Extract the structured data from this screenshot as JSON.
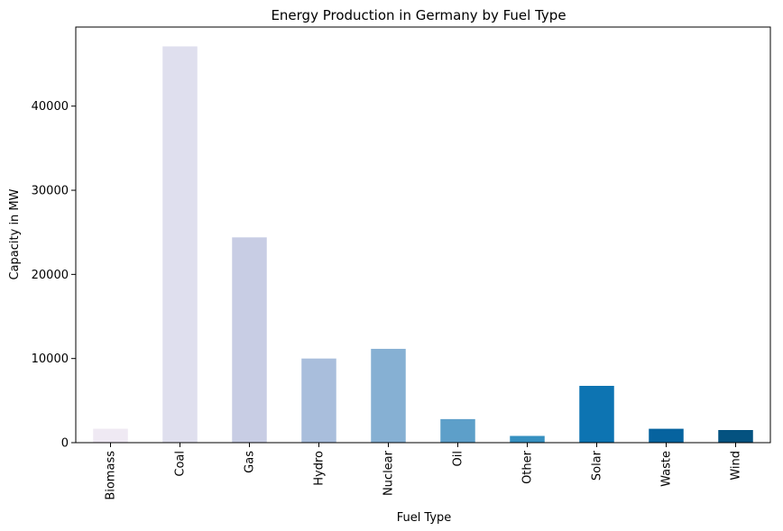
{
  "chart_data": {
    "type": "bar",
    "title": "Energy Production in Germany by Fuel Type",
    "xlabel": "Fuel Type",
    "ylabel": "Capacity in MW",
    "categories": [
      "Biomass",
      "Coal",
      "Gas",
      "Hydro",
      "Nuclear",
      "Oil",
      "Other",
      "Solar",
      "Waste",
      "Wind"
    ],
    "values": [
      1650,
      47100,
      24400,
      10000,
      11150,
      2800,
      800,
      6750,
      1650,
      1500
    ],
    "colors": [
      "#efe9f3",
      "#dfdfee",
      "#c8cde4",
      "#a9bedc",
      "#86b0d3",
      "#5d9fc9",
      "#3690c0",
      "#0d74b2",
      "#06639f",
      "#045280"
    ],
    "ylim": [
      0,
      49400
    ],
    "yticks": [
      0,
      10000,
      20000,
      30000,
      40000
    ],
    "ytick_labels": [
      "0",
      "10000",
      "20000",
      "30000",
      "40000"
    ],
    "grid": false,
    "legend": "none"
  }
}
